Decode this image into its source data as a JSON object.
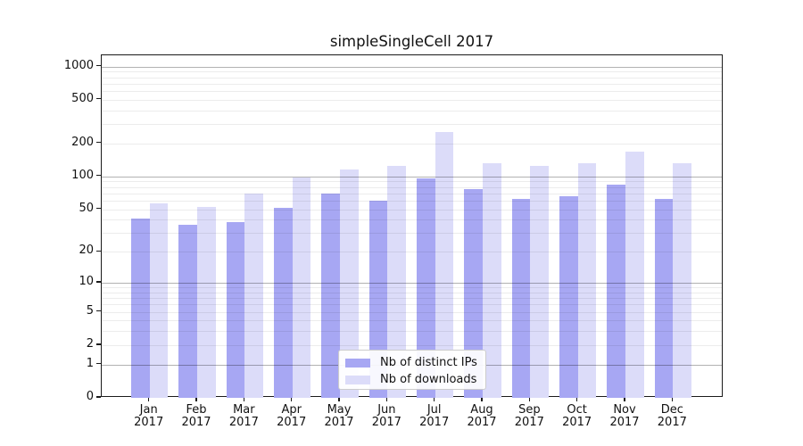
{
  "chart_data": {
    "type": "bar",
    "title": "simpleSingleCell 2017",
    "xlabel": "",
    "ylabel": "",
    "yscale": "log1p",
    "ylim": [
      0,
      1270
    ],
    "y_ticks": [
      0,
      1,
      2,
      5,
      10,
      20,
      50,
      100,
      200,
      500,
      1000
    ],
    "grid": "horizontal; faint minor lines at 2-9 per decade, darker lines at 1, 10, 100, 1000",
    "legend_position": "inside lower-center",
    "categories": [
      "Jan 2017",
      "Feb 2017",
      "Mar 2017",
      "Apr 2017",
      "May 2017",
      "Jun 2017",
      "Jul 2017",
      "Aug 2017",
      "Sep 2017",
      "Oct 2017",
      "Nov 2017",
      "Dec 2017"
    ],
    "series": [
      {
        "name": "Nb of distinct IPs",
        "color": "#a7a7f3",
        "values": [
          41,
          36,
          38,
          52,
          70,
          60,
          96,
          77,
          62,
          66,
          85,
          62
        ]
      },
      {
        "name": "Nb of downloads",
        "color": "#dcdcf9",
        "values": [
          57,
          53,
          70,
          98,
          117,
          124,
          254,
          131,
          126,
          133,
          170,
          132
        ]
      }
    ]
  },
  "colors": {
    "background": "#ffffff",
    "spine": "#1a1a1a",
    "major_grid": "#b5b5b5",
    "minor_grid": "#ececec",
    "bar_ips": "#a7a7f3",
    "bar_downloads": "#dcdcf9"
  }
}
